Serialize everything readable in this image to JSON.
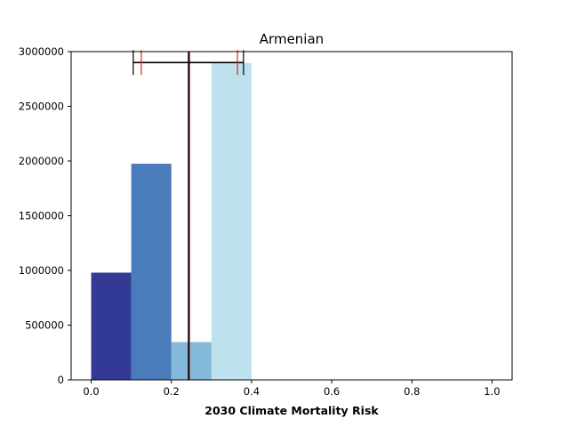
{
  "chart_data": {
    "type": "bar",
    "title": "Armenian",
    "xlabel": "2030 Climate Mortality Risk",
    "ylabel": "",
    "xlim": [
      -0.05,
      1.05
    ],
    "ylim": [
      0,
      3000000
    ],
    "grid": false,
    "bins": [
      {
        "x0": 0.0,
        "x1": 0.1,
        "value": 980000,
        "color": "#323a96"
      },
      {
        "x0": 0.1,
        "x1": 0.2,
        "value": 1975000,
        "color": "#4a7bba"
      },
      {
        "x0": 0.2,
        "x1": 0.3,
        "value": 345000,
        "color": "#83b9da"
      },
      {
        "x0": 0.3,
        "x1": 0.4,
        "value": 2895000,
        "color": "#bde2ed"
      }
    ],
    "x_ticks": [
      {
        "value": 0.0,
        "label": "0.0"
      },
      {
        "value": 0.2,
        "label": "0.2"
      },
      {
        "value": 0.4,
        "label": "0.4"
      },
      {
        "value": 0.6,
        "label": "0.6"
      },
      {
        "value": 0.8,
        "label": "0.8"
      },
      {
        "value": 1.0,
        "label": "1.0"
      }
    ],
    "y_ticks": [
      {
        "value": 0,
        "label": "0"
      },
      {
        "value": 500000,
        "label": "500000"
      },
      {
        "value": 1000000,
        "label": "1000000"
      },
      {
        "value": 1500000,
        "label": "1500000"
      },
      {
        "value": 2000000,
        "label": "2000000"
      },
      {
        "value": 2500000,
        "label": "2500000"
      },
      {
        "value": 3000000,
        "label": "3000000"
      }
    ],
    "vertical_lines": [
      {
        "x": 0.245,
        "color": "#d62728"
      },
      {
        "x": 0.243,
        "color": "#000000"
      }
    ],
    "range_bar": {
      "y": 2900000,
      "x_min": 0.105,
      "x_max": 0.38,
      "outer_ticks": [
        0.105,
        0.38
      ],
      "inner_ticks": [
        0.125,
        0.365
      ],
      "outer_color": "#000000",
      "inner_color": "#d62728"
    }
  }
}
